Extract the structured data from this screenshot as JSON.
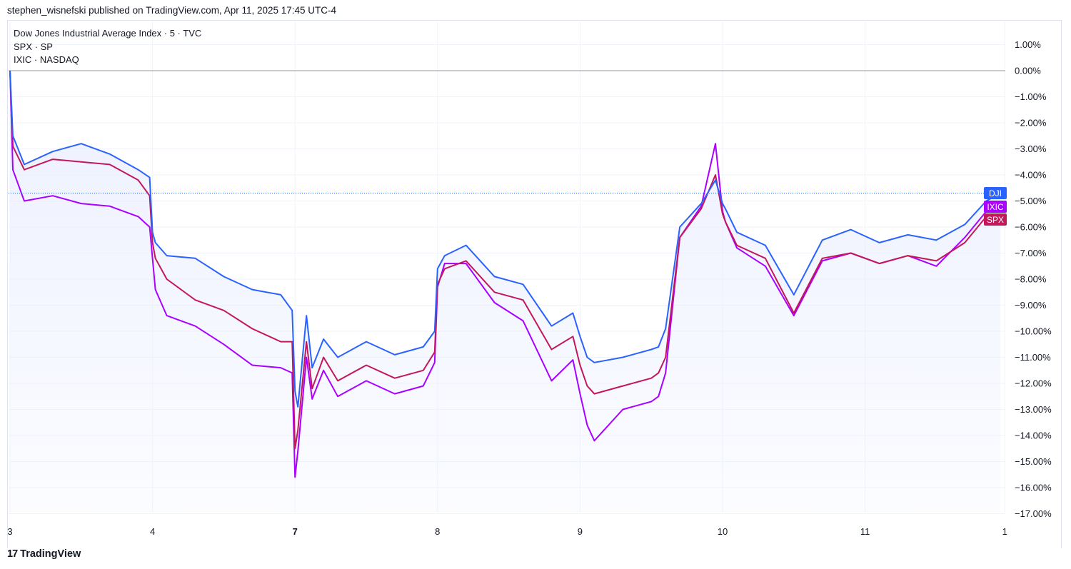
{
  "header": {
    "published": "stephen_wisnefski published on TradingView.com, Apr 11, 2025 17:45 UTC-4"
  },
  "legend": [
    {
      "text": "Dow Jones Industrial Average Index · 5 · TVC"
    },
    {
      "text": "SPX · SP"
    },
    {
      "text": "IXIC · NASDAQ"
    }
  ],
  "footer": {
    "brand": "TradingView",
    "logo": "17"
  },
  "colors": {
    "DJI": "#2962ff",
    "SPX": "#c2185b",
    "IXIC": "#aa00ff",
    "grid": "#f0f3fa",
    "zero_line": "#9598a1",
    "fill": "#e8edff"
  },
  "chart_data": {
    "type": "line",
    "title": "",
    "ylabel": "",
    "ylim": [
      -17.0,
      1.5
    ],
    "y_ticks": [
      "1.00%",
      "0.00%",
      "−1.00%",
      "−2.00%",
      "−3.00%",
      "−4.00%",
      "−5.00%",
      "−6.00%",
      "−7.00%",
      "−8.00%",
      "−9.00%",
      "−10.00%",
      "−11.00%",
      "−12.00%",
      "−13.00%",
      "−14.00%",
      "−15.00%",
      "−16.00%",
      "−17.00%"
    ],
    "x_ticks": [
      "3",
      "4",
      "7",
      "8",
      "9",
      "10",
      "11",
      "1"
    ],
    "x": [
      0,
      0.02,
      0.1,
      0.3,
      0.5,
      0.7,
      0.9,
      0.98,
      1.0,
      1.02,
      1.1,
      1.3,
      1.5,
      1.7,
      1.9,
      1.98,
      2.0,
      2.02,
      2.08,
      2.12,
      2.2,
      2.3,
      2.5,
      2.7,
      2.9,
      2.98,
      3.0,
      3.05,
      3.2,
      3.4,
      3.6,
      3.8,
      3.95,
      4.0,
      4.05,
      4.1,
      4.3,
      4.5,
      4.55,
      4.6,
      4.7,
      4.85,
      4.95,
      5.0,
      5.02,
      5.1,
      5.3,
      5.5,
      5.7,
      5.9,
      6.1,
      6.3,
      6.5,
      6.7,
      6.85,
      6.95
    ],
    "series": [
      {
        "name": "DJI",
        "values": [
          0.0,
          -2.5,
          -3.6,
          -3.1,
          -2.8,
          -3.2,
          -3.8,
          -4.1,
          -6.2,
          -6.6,
          -7.1,
          -7.2,
          -7.9,
          -8.4,
          -8.6,
          -9.2,
          -12.3,
          -12.9,
          -9.4,
          -11.4,
          -10.3,
          -11.0,
          -10.4,
          -10.9,
          -10.6,
          -10.0,
          -7.6,
          -7.1,
          -6.7,
          -7.9,
          -8.2,
          -9.8,
          -9.3,
          -10.2,
          -11.0,
          -11.2,
          -11.0,
          -10.7,
          -10.6,
          -9.9,
          -6.0,
          -5.1,
          -4.2,
          -5.1,
          -5.3,
          -6.2,
          -6.7,
          -8.6,
          -6.5,
          -6.1,
          -6.6,
          -6.3,
          -6.5,
          -5.9,
          -5.0,
          -4.7
        ]
      },
      {
        "name": "SPX",
        "values": [
          0.0,
          -2.9,
          -3.8,
          -3.4,
          -3.5,
          -3.6,
          -4.2,
          -4.8,
          -6.6,
          -7.2,
          -8.0,
          -8.8,
          -9.2,
          -9.9,
          -10.4,
          -10.4,
          -14.5,
          -13.8,
          -10.4,
          -12.2,
          -11.0,
          -11.9,
          -11.3,
          -11.8,
          -11.5,
          -10.8,
          -8.2,
          -7.6,
          -7.3,
          -8.5,
          -8.8,
          -10.7,
          -10.2,
          -11.3,
          -12.1,
          -12.4,
          -12.1,
          -11.8,
          -11.6,
          -11.0,
          -6.4,
          -5.3,
          -4.0,
          -5.5,
          -5.8,
          -6.7,
          -7.2,
          -9.3,
          -7.2,
          -7.0,
          -7.4,
          -7.1,
          -7.3,
          -6.6,
          -5.6,
          -5.6
        ]
      },
      {
        "name": "IXIC",
        "values": [
          0.0,
          -3.8,
          -5.0,
          -4.8,
          -5.1,
          -5.2,
          -5.6,
          -6.0,
          -7.2,
          -8.4,
          -9.4,
          -9.8,
          -10.5,
          -11.3,
          -11.4,
          -11.6,
          -15.6,
          -14.6,
          -11.0,
          -12.6,
          -11.5,
          -12.5,
          -11.9,
          -12.4,
          -12.1,
          -11.2,
          -8.3,
          -7.4,
          -7.4,
          -8.9,
          -9.6,
          -11.9,
          -11.1,
          -12.4,
          -13.6,
          -14.2,
          -13.0,
          -12.7,
          -12.5,
          -11.6,
          -6.4,
          -5.2,
          -2.8,
          -5.4,
          -5.8,
          -6.8,
          -7.5,
          -9.4,
          -7.3,
          -7.0,
          -7.4,
          -7.1,
          -7.5,
          -6.4,
          -5.4,
          -5.4
        ]
      }
    ],
    "last_labels": [
      "DJI",
      "IXIC",
      "SPX"
    ],
    "grid": true,
    "legend_position": "top-left"
  }
}
